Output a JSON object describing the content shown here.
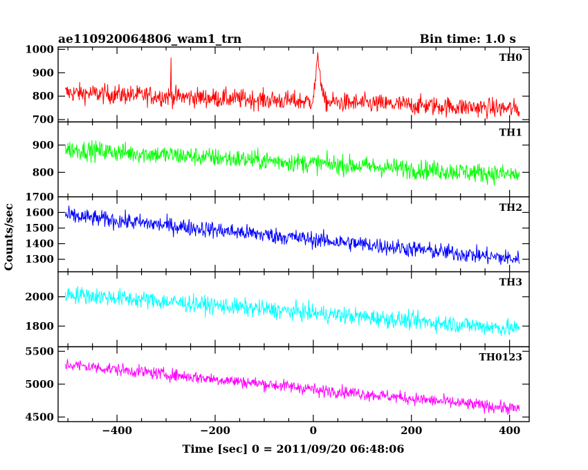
{
  "header": {
    "left_title": "ae110920064806_wam1_trn",
    "right_title": "Bin time: 1.0 s"
  },
  "chart_data": {
    "type": "line",
    "xlabel": "Time [sec] 0 = 2011/09/20 06:48:06",
    "ylabel": "Counts/sec",
    "xlim": [
      -520,
      440
    ],
    "x_ticks": [
      -400,
      -200,
      0,
      200,
      400
    ],
    "x_tick_labels": [
      "−400",
      "−200",
      "0",
      "200",
      "400"
    ],
    "x_range_data": [
      -505,
      420
    ],
    "bin_time_s": 1.0,
    "panels": [
      {
        "name": "TH0",
        "color": "#ff0000",
        "ylim": [
          690,
          1010
        ],
        "y_ticks": [
          700,
          800,
          900,
          1000
        ],
        "y_tick_labels": [
          "700",
          "800",
          "900",
          "1000"
        ],
        "trend_start": 815,
        "trend_end": 745,
        "noise": 35,
        "event": {
          "t": 10,
          "peak": 1020,
          "width": 7
        },
        "spike": {
          "t": -290,
          "value": 965
        }
      },
      {
        "name": "TH1",
        "color": "#00ff00",
        "ylim": [
          710,
          985
        ],
        "y_ticks": [
          800,
          900
        ],
        "y_tick_labels": [
          "800",
          "900"
        ],
        "trend_start": 885,
        "trend_end": 790,
        "noise": 30
      },
      {
        "name": "TH2",
        "color": "#0000ff",
        "ylim": [
          1220,
          1700
        ],
        "y_ticks": [
          1300,
          1400,
          1500,
          1600,
          1700
        ],
        "y_tick_labels": [
          "1300",
          "1400",
          "1500",
          "1600",
          "1700"
        ],
        "trend_start": 1580,
        "trend_end": 1300,
        "noise": 45
      },
      {
        "name": "TH3",
        "color": "#00ffff",
        "ylim": [
          1660,
          2170
        ],
        "y_ticks": [
          1800,
          2000
        ],
        "y_tick_labels": [
          "1800",
          "2000"
        ],
        "trend_start": 2020,
        "trend_end": 1780,
        "noise": 50
      },
      {
        "name": "TH0123",
        "color": "#ff00ff",
        "ylim": [
          4430,
          5570
        ],
        "y_ticks": [
          4500,
          5000,
          5500
        ],
        "y_tick_labels": [
          "4500",
          "5000",
          "5500"
        ],
        "trend_start": 5300,
        "trend_end": 4620,
        "noise": 80,
        "event": {
          "t": 12,
          "peak": 5250,
          "width": 8
        }
      }
    ]
  }
}
